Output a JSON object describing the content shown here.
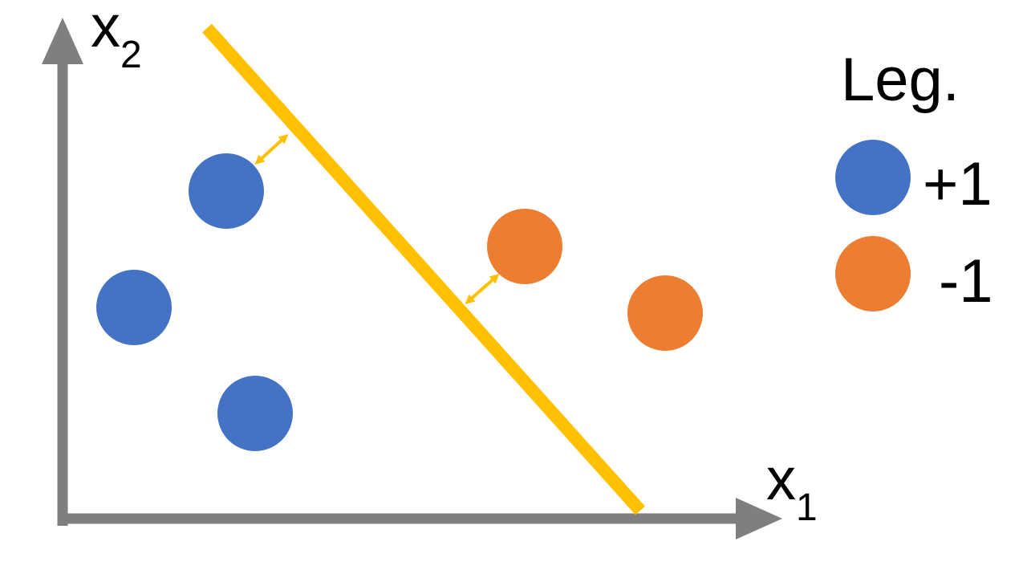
{
  "axes": {
    "x_label": "x",
    "x_subscript": "1",
    "y_label": "x",
    "y_subscript": "2"
  },
  "legend": {
    "title": "Leg.",
    "items": [
      {
        "label": "+1",
        "color": "#4472C4"
      },
      {
        "label": "-1",
        "color": "#ED7D31"
      }
    ]
  },
  "colors": {
    "axis": "#7F7F7F",
    "separator": "#FFC000",
    "positive": "#4472C4",
    "negative": "#ED7D31"
  }
}
